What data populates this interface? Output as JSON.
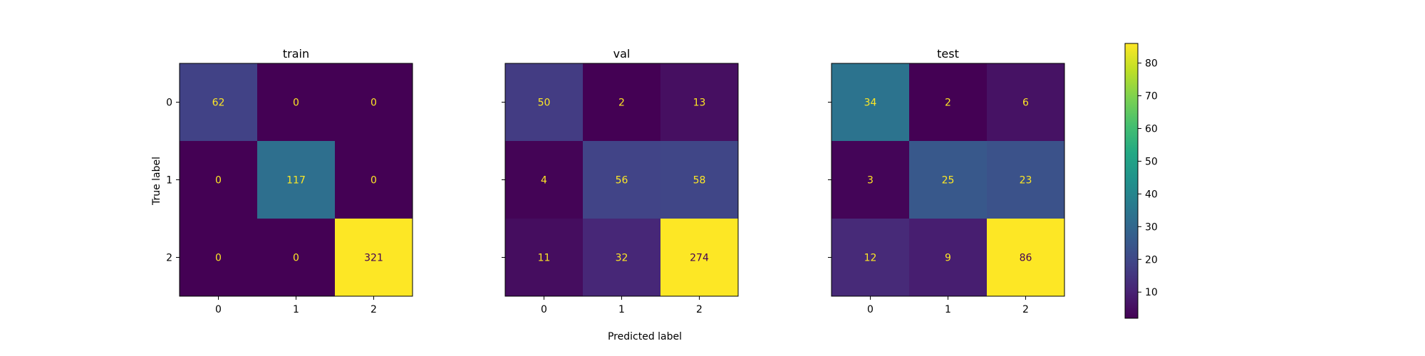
{
  "chart_data": {
    "type": "heatmap",
    "xlabel": "Predicted label",
    "ylabel": "True label",
    "class_labels": [
      "0",
      "1",
      "2"
    ],
    "colormap": "viridis",
    "colorbar": {
      "range": [
        2,
        86
      ],
      "ticks": [
        10,
        20,
        30,
        40,
        50,
        60,
        70,
        80
      ]
    },
    "panels": [
      {
        "title": "train",
        "matrix": [
          [
            62,
            0,
            0
          ],
          [
            0,
            117,
            0
          ],
          [
            0,
            0,
            321
          ]
        ]
      },
      {
        "title": "val",
        "matrix": [
          [
            50,
            2,
            13
          ],
          [
            4,
            56,
            58
          ],
          [
            11,
            32,
            274
          ]
        ]
      },
      {
        "title": "test",
        "matrix": [
          [
            34,
            2,
            6
          ],
          [
            3,
            25,
            23
          ],
          [
            12,
            9,
            86
          ]
        ]
      }
    ]
  }
}
